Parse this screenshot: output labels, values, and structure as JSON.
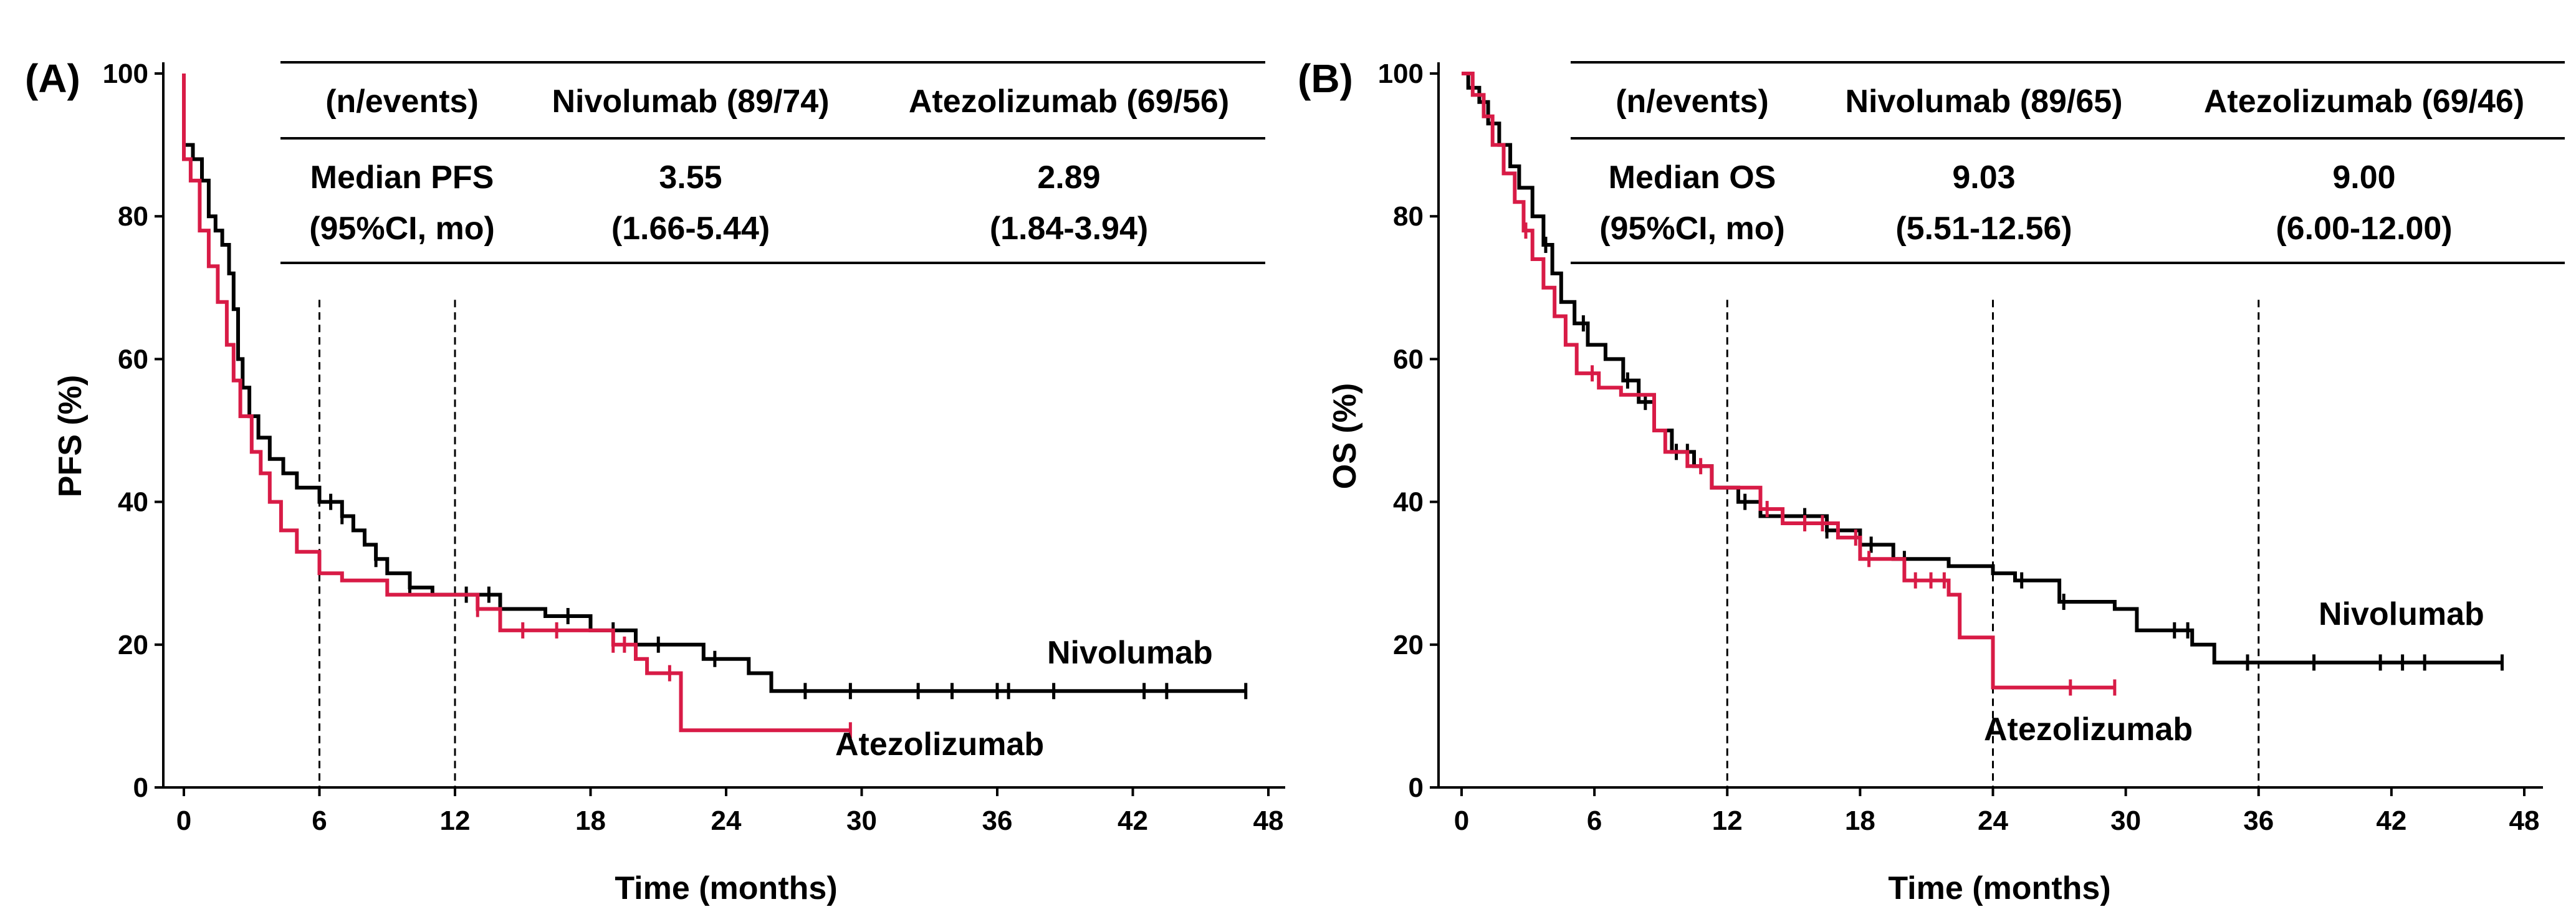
{
  "chart_data": [
    {
      "type": "line",
      "panel_label": "(A)",
      "xlabel": "Time (months)",
      "ylabel": "PFS (%)",
      "xlim": [
        0,
        48
      ],
      "ylim": [
        0,
        100
      ],
      "x_ticks": [
        "0",
        "6",
        "12",
        "18",
        "24",
        "30",
        "36",
        "42",
        "48"
      ],
      "y_ticks": [
        "0",
        "20",
        "40",
        "60",
        "80",
        "100"
      ],
      "reference_lines_x": [
        6,
        12
      ],
      "table": {
        "header": [
          "(n/events)",
          "Nivolumab (89/74)",
          "Atezolizumab (69/56)"
        ],
        "row_label": [
          "Median PFS",
          "(95%CI, mo)"
        ],
        "nivolumab": [
          "3.55",
          "(1.66-5.44)"
        ],
        "atezolizumab": [
          "2.89",
          "(1.84-3.94)"
        ]
      },
      "series": [
        {
          "name": "Nivolumab",
          "color": "#000000",
          "steps": [
            [
              0,
              100
            ],
            [
              0,
              90
            ],
            [
              0.4,
              90
            ],
            [
              0.4,
              88
            ],
            [
              0.8,
              88
            ],
            [
              0.8,
              85
            ],
            [
              1.1,
              85
            ],
            [
              1.1,
              80
            ],
            [
              1.4,
              80
            ],
            [
              1.4,
              78
            ],
            [
              1.7,
              78
            ],
            [
              1.7,
              76
            ],
            [
              2,
              76
            ],
            [
              2,
              72
            ],
            [
              2.2,
              72
            ],
            [
              2.2,
              67
            ],
            [
              2.4,
              67
            ],
            [
              2.4,
              60
            ],
            [
              2.6,
              60
            ],
            [
              2.6,
              56
            ],
            [
              2.9,
              56
            ],
            [
              2.9,
              52
            ],
            [
              3.3,
              52
            ],
            [
              3.3,
              49
            ],
            [
              3.8,
              49
            ],
            [
              3.8,
              46
            ],
            [
              4.4,
              46
            ],
            [
              4.4,
              44
            ],
            [
              5,
              44
            ],
            [
              5,
              42
            ],
            [
              6,
              42
            ],
            [
              6,
              40
            ],
            [
              7,
              40
            ],
            [
              7,
              38
            ],
            [
              7.5,
              38
            ],
            [
              7.5,
              36
            ],
            [
              8,
              36
            ],
            [
              8,
              34
            ],
            [
              8.5,
              34
            ],
            [
              8.5,
              32
            ],
            [
              9,
              32
            ],
            [
              9,
              30
            ],
            [
              10,
              30
            ],
            [
              10,
              28
            ],
            [
              11,
              28
            ],
            [
              11,
              27
            ],
            [
              14,
              27
            ],
            [
              14,
              25
            ],
            [
              16,
              25
            ],
            [
              16,
              24
            ],
            [
              18,
              24
            ],
            [
              18,
              22
            ],
            [
              20,
              22
            ],
            [
              20,
              20
            ],
            [
              23,
              20
            ],
            [
              23,
              18
            ],
            [
              25,
              18
            ],
            [
              25,
              16
            ],
            [
              26,
              16
            ],
            [
              26,
              13.5
            ],
            [
              47,
              13.5
            ]
          ],
          "censor_x": [
            6.5,
            7,
            8.5,
            10,
            12.5,
            13.5,
            17,
            19,
            21,
            23.5,
            27.5,
            29.5,
            32.5,
            34,
            36,
            36.5,
            38.5,
            42.5,
            43.5,
            47
          ]
        },
        {
          "name": "Atezolizumab",
          "color": "#d81b46",
          "steps": [
            [
              0,
              100
            ],
            [
              0,
              88
            ],
            [
              0.3,
              88
            ],
            [
              0.3,
              85
            ],
            [
              0.7,
              85
            ],
            [
              0.7,
              78
            ],
            [
              1.1,
              78
            ],
            [
              1.1,
              73
            ],
            [
              1.5,
              73
            ],
            [
              1.5,
              68
            ],
            [
              1.9,
              68
            ],
            [
              1.9,
              62
            ],
            [
              2.2,
              62
            ],
            [
              2.2,
              57
            ],
            [
              2.5,
              57
            ],
            [
              2.5,
              52
            ],
            [
              3,
              52
            ],
            [
              3,
              47
            ],
            [
              3.4,
              47
            ],
            [
              3.4,
              44
            ],
            [
              3.8,
              44
            ],
            [
              3.8,
              40
            ],
            [
              4.3,
              40
            ],
            [
              4.3,
              36
            ],
            [
              5,
              36
            ],
            [
              5,
              33
            ],
            [
              6,
              33
            ],
            [
              6,
              30
            ],
            [
              7,
              30
            ],
            [
              7,
              29
            ],
            [
              9,
              29
            ],
            [
              9,
              27
            ],
            [
              13,
              27
            ],
            [
              13,
              25
            ],
            [
              14,
              25
            ],
            [
              14,
              22
            ],
            [
              19,
              22
            ],
            [
              19,
              20
            ],
            [
              20,
              20
            ],
            [
              20,
              18
            ],
            [
              20.5,
              18
            ],
            [
              20.5,
              16
            ],
            [
              22,
              16
            ],
            [
              22,
              8
            ],
            [
              29.5,
              8
            ]
          ],
          "censor_x": [
            13,
            15,
            16.5,
            19,
            19.5,
            21.5,
            29.5
          ]
        }
      ]
    },
    {
      "type": "line",
      "panel_label": "(B)",
      "xlabel": "Time (months)",
      "ylabel": "OS (%)",
      "xlim": [
        0,
        48
      ],
      "ylim": [
        0,
        100
      ],
      "x_ticks": [
        "0",
        "6",
        "12",
        "18",
        "24",
        "30",
        "36",
        "42",
        "48"
      ],
      "y_ticks": [
        "0",
        "20",
        "40",
        "60",
        "80",
        "100"
      ],
      "reference_lines_x": [
        12,
        24,
        36
      ],
      "table": {
        "header": [
          "(n/events)",
          "Nivolumab (89/65)",
          "Atezolizumab (69/46)"
        ],
        "row_label": [
          "Median OS",
          "(95%CI, mo)"
        ],
        "nivolumab": [
          "9.03",
          "(5.51-12.56)"
        ],
        "atezolizumab": [
          "9.00",
          "(6.00-12.00)"
        ]
      },
      "series": [
        {
          "name": "Nivolumab",
          "color": "#000000",
          "steps": [
            [
              0,
              100
            ],
            [
              0.3,
              100
            ],
            [
              0.3,
              98
            ],
            [
              0.8,
              98
            ],
            [
              0.8,
              96
            ],
            [
              1.2,
              96
            ],
            [
              1.2,
              93
            ],
            [
              1.7,
              93
            ],
            [
              1.7,
              90
            ],
            [
              2.2,
              90
            ],
            [
              2.2,
              87
            ],
            [
              2.6,
              87
            ],
            [
              2.6,
              84
            ],
            [
              3.2,
              84
            ],
            [
              3.2,
              80
            ],
            [
              3.7,
              80
            ],
            [
              3.7,
              76
            ],
            [
              4.1,
              76
            ],
            [
              4.1,
              72
            ],
            [
              4.5,
              72
            ],
            [
              4.5,
              68
            ],
            [
              5.1,
              68
            ],
            [
              5.1,
              65
            ],
            [
              5.7,
              65
            ],
            [
              5.7,
              62
            ],
            [
              6.5,
              62
            ],
            [
              6.5,
              60
            ],
            [
              7.3,
              60
            ],
            [
              7.3,
              57
            ],
            [
              8,
              57
            ],
            [
              8,
              54
            ],
            [
              8.7,
              54
            ],
            [
              8.7,
              50
            ],
            [
              9.5,
              50
            ],
            [
              9.5,
              47
            ],
            [
              10.5,
              47
            ],
            [
              10.5,
              45
            ],
            [
              11.3,
              45
            ],
            [
              11.3,
              42
            ],
            [
              12.5,
              42
            ],
            [
              12.5,
              40
            ],
            [
              13.5,
              40
            ],
            [
              13.5,
              38
            ],
            [
              16.5,
              38
            ],
            [
              16.5,
              36
            ],
            [
              18,
              36
            ],
            [
              18,
              34
            ],
            [
              19.5,
              34
            ],
            [
              19.5,
              32
            ],
            [
              22,
              32
            ],
            [
              22,
              31
            ],
            [
              24,
              31
            ],
            [
              24,
              30
            ],
            [
              25,
              30
            ],
            [
              25,
              29
            ],
            [
              27,
              29
            ],
            [
              27,
              26
            ],
            [
              29.5,
              26
            ],
            [
              29.5,
              25
            ],
            [
              30.5,
              25
            ],
            [
              30.5,
              22
            ],
            [
              33,
              22
            ],
            [
              33,
              20
            ],
            [
              34,
              20
            ],
            [
              34,
              17.5
            ],
            [
              47,
              17.5
            ]
          ],
          "censor_x": [
            3.8,
            5.5,
            7.5,
            8.3,
            9.7,
            10.2,
            12.8,
            15.5,
            16.5,
            18.5,
            20,
            25.3,
            27.2,
            32.2,
            32.8,
            35.5,
            38.5,
            41.5,
            42.5,
            43.5,
            47
          ]
        },
        {
          "name": "Atezolizumab",
          "color": "#d81b46",
          "steps": [
            [
              0,
              100
            ],
            [
              0.5,
              100
            ],
            [
              0.5,
              97
            ],
            [
              1,
              97
            ],
            [
              1,
              94
            ],
            [
              1.4,
              94
            ],
            [
              1.4,
              90
            ],
            [
              1.9,
              90
            ],
            [
              1.9,
              86
            ],
            [
              2.4,
              86
            ],
            [
              2.4,
              82
            ],
            [
              2.8,
              82
            ],
            [
              2.8,
              78
            ],
            [
              3.2,
              78
            ],
            [
              3.2,
              74
            ],
            [
              3.7,
              74
            ],
            [
              3.7,
              70
            ],
            [
              4.2,
              70
            ],
            [
              4.2,
              66
            ],
            [
              4.7,
              66
            ],
            [
              4.7,
              62
            ],
            [
              5.2,
              62
            ],
            [
              5.2,
              58
            ],
            [
              6.2,
              58
            ],
            [
              6.2,
              56
            ],
            [
              7.2,
              56
            ],
            [
              7.2,
              55
            ],
            [
              8.7,
              55
            ],
            [
              8.7,
              50
            ],
            [
              9.2,
              50
            ],
            [
              9.2,
              47
            ],
            [
              10.2,
              47
            ],
            [
              10.2,
              45
            ],
            [
              11.3,
              45
            ],
            [
              11.3,
              42
            ],
            [
              13.5,
              42
            ],
            [
              13.5,
              39
            ],
            [
              14.5,
              39
            ],
            [
              14.5,
              37
            ],
            [
              17,
              37
            ],
            [
              17,
              35
            ],
            [
              18,
              35
            ],
            [
              18,
              32
            ],
            [
              20,
              32
            ],
            [
              20,
              29
            ],
            [
              22,
              29
            ],
            [
              22,
              27
            ],
            [
              22.5,
              27
            ],
            [
              22.5,
              21
            ],
            [
              24,
              21
            ],
            [
              24,
              14
            ],
            [
              29.5,
              14
            ]
          ],
          "censor_x": [
            2.9,
            5.9,
            10.8,
            13.8,
            15.5,
            16.3,
            17.8,
            18.4,
            20.5,
            21.2,
            21.8,
            27.5,
            29.5
          ]
        }
      ]
    }
  ]
}
